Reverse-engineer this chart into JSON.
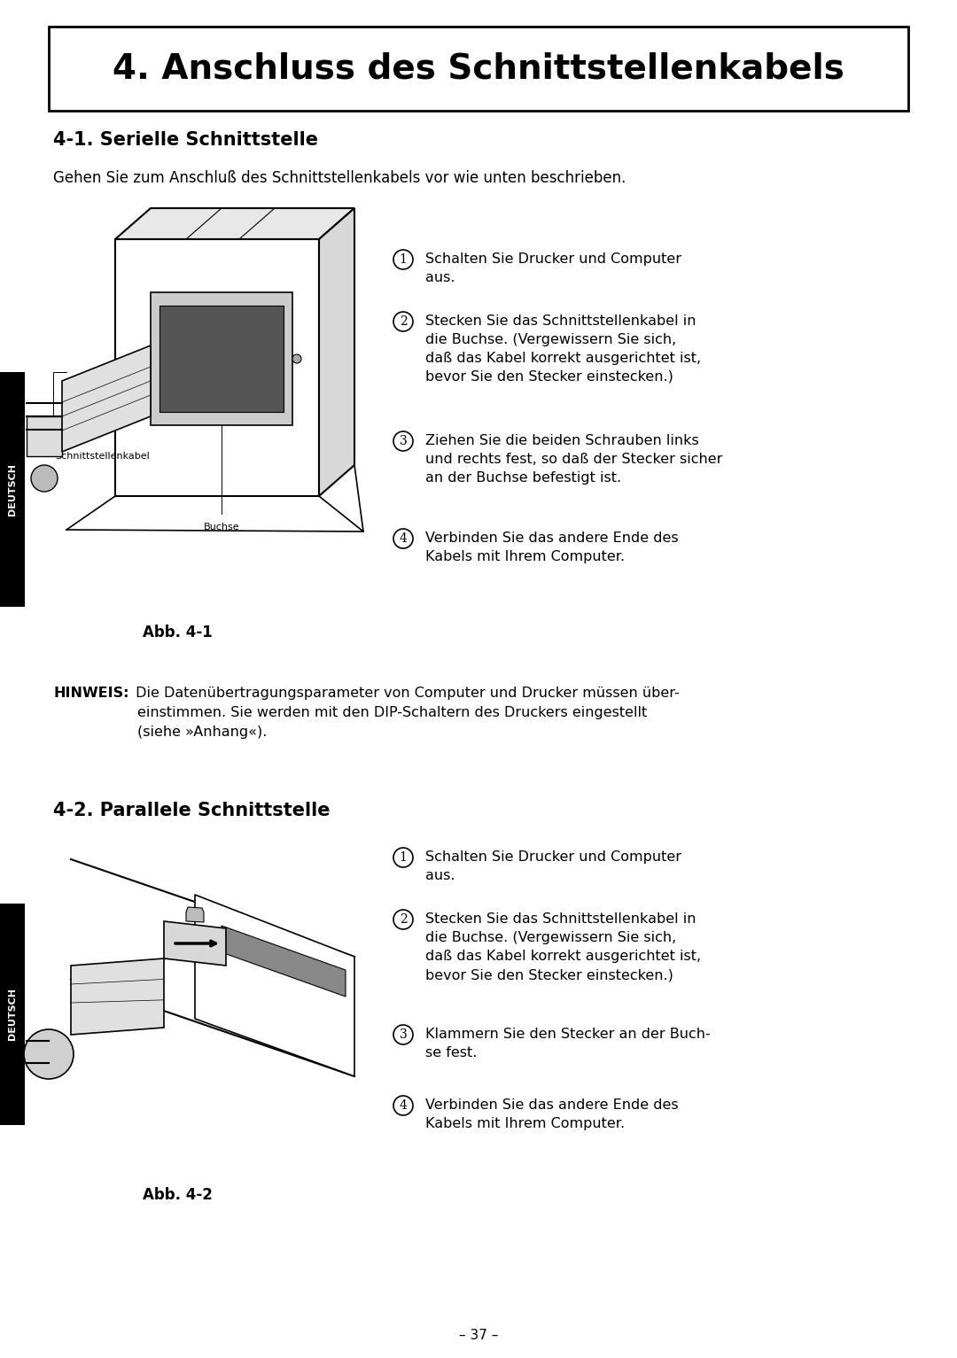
{
  "bg_color": "#ffffff",
  "page_width": 10.8,
  "page_height": 15.33,
  "title": "4. Anschluss des Schnittstellenkabels",
  "section1_heading": "4-1. Serielle Schnittstelle",
  "section1_intro": "Gehen Sie zum Anschluß des Schnittstellenkabels vor wie unten beschrieben.",
  "section1_steps": [
    "Schalten Sie Drucker und Computer\naus.",
    "Stecken Sie das Schnittstellenkabel in\ndie Buchse. (Vergewissern Sie sich,\ndaß das Kabel korrekt ausgerichtet ist,\nbevor Sie den Stecker einstecken.)",
    "Ziehen Sie die beiden Schrauben links\nund rechts fest, so daß der Stecker sicher\nan der Buchse befestigt ist.",
    "Verbinden Sie das andere Ende des\nKabels mit Ihrem Computer."
  ],
  "fig1_label": "Abb. 4-1",
  "label_schnittstellenkabel": "Schnittstellenkabel",
  "label_buchse": "Buchse",
  "hinweis_bold": "HINWEIS:",
  "hinweis_line1": " Die Datenübertragungsparameter von Computer und Drucker müssen über-",
  "hinweis_line2": "einstimmen. Sie werden mit den DIP-Schaltern des Druckers eingestellt",
  "hinweis_line3": "(siehe »Anhang«).",
  "section2_heading": "4-2. Parallele Schnittstelle",
  "section2_steps": [
    "Schalten Sie Drucker und Computer\naus.",
    "Stecken Sie das Schnittstellenkabel in\ndie Buchse. (Vergewissern Sie sich,\ndaß das Kabel korrekt ausgerichtet ist,\nbevor Sie den Stecker einstecken.)",
    "Klammern Sie den Stecker an der Buch-\nse fest.",
    "Verbinden Sie das andere Ende des\nKabels mit Ihrem Computer."
  ],
  "fig2_label": "Abb. 4-2",
  "deutsch_label": "DEUTSCH",
  "page_number": "– 37 –"
}
